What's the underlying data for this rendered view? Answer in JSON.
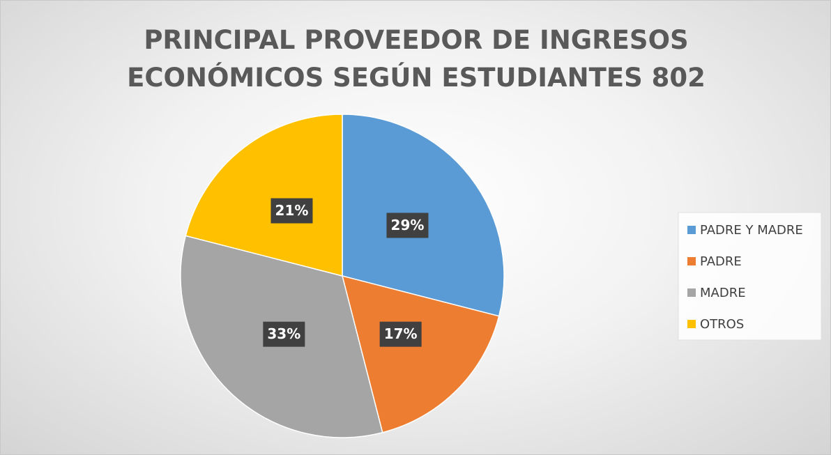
{
  "chart_data": {
    "type": "pie",
    "title": "PRINCIPAL PROVEEDOR DE INGRESOS ECONÓMICOS SEGÚN ESTUDIANTES 802",
    "categories": [
      "PADRE Y MADRE",
      "PADRE",
      "MADRE",
      "OTROS"
    ],
    "values": [
      29,
      17,
      33,
      21
    ],
    "value_labels": [
      "29%",
      "17%",
      "33%",
      "21%"
    ],
    "colors": [
      "#5b9bd5",
      "#ed7d31",
      "#a5a5a5",
      "#ffc000"
    ],
    "legend": "right"
  }
}
